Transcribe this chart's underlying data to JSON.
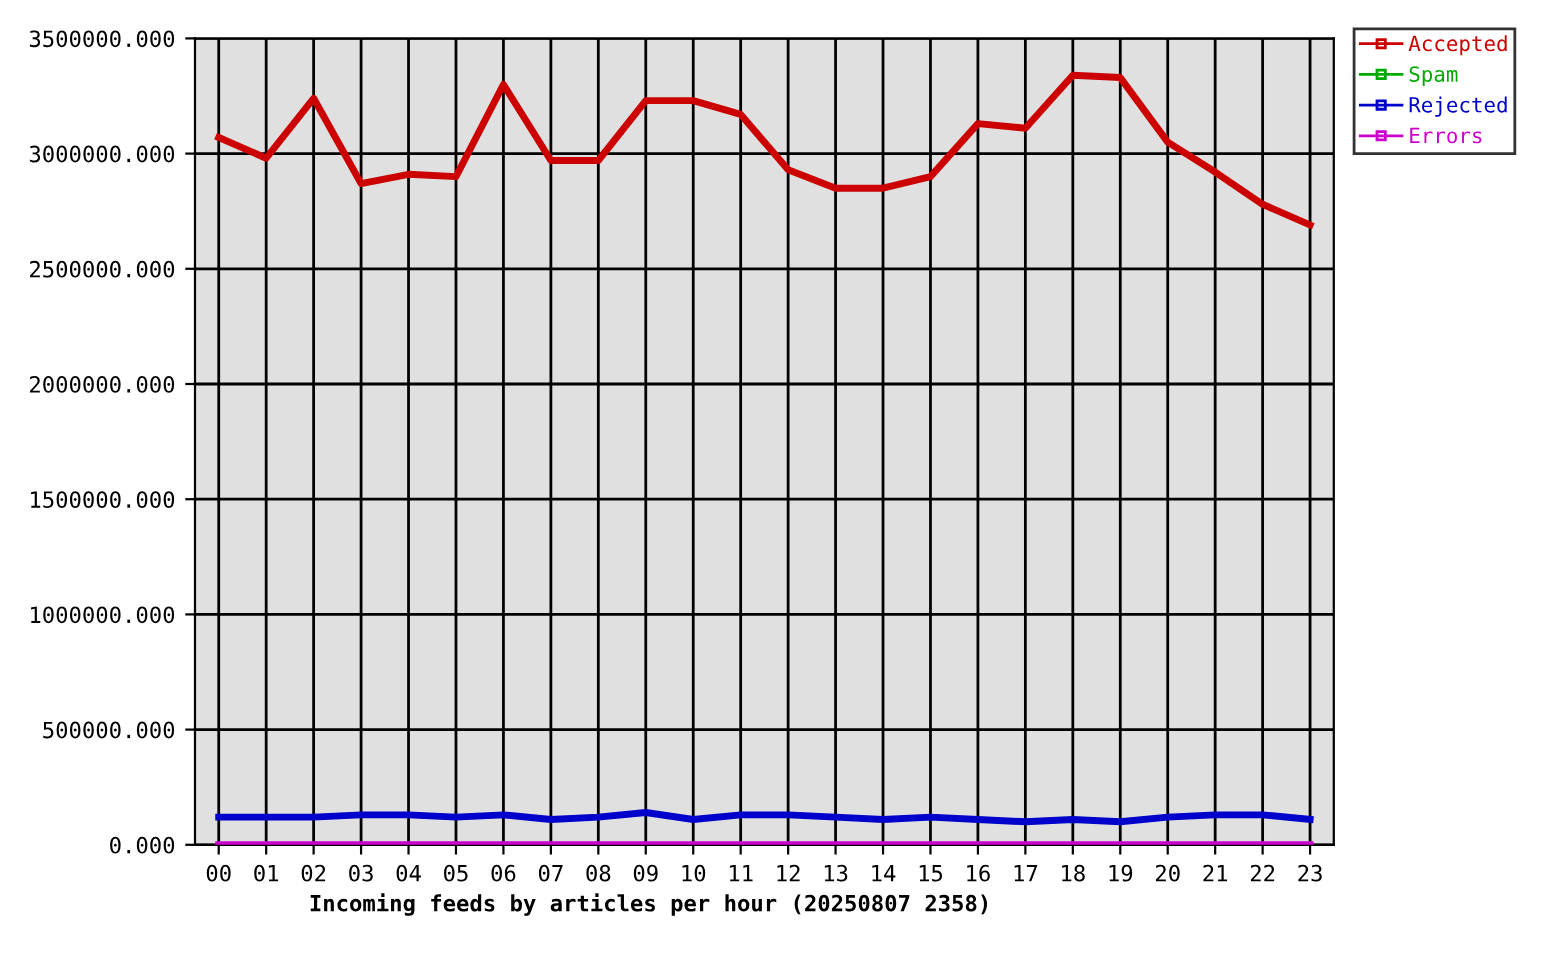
{
  "chart_data": {
    "type": "line",
    "xlabel": "Incoming feeds by articles per hour (20250807 2358)",
    "categories": [
      "00",
      "01",
      "02",
      "03",
      "04",
      "05",
      "06",
      "07",
      "08",
      "09",
      "10",
      "11",
      "12",
      "13",
      "14",
      "15",
      "16",
      "17",
      "18",
      "19",
      "20",
      "21",
      "22",
      "23"
    ],
    "series": [
      {
        "name": "Accepted",
        "color": "#cc0000",
        "values": [
          3070000,
          2980000,
          3240000,
          2870000,
          2910000,
          2900000,
          3300000,
          2970000,
          2970000,
          3230000,
          3230000,
          3170000,
          2930000,
          2850000,
          2850000,
          2900000,
          3130000,
          3110000,
          3340000,
          3330000,
          3050000,
          2920000,
          2780000,
          2690000
        ]
      },
      {
        "name": "Spam",
        "color": "#00aa00",
        "values": [
          null,
          null,
          null,
          null,
          null,
          null,
          null,
          null,
          null,
          null,
          null,
          null,
          null,
          null,
          null,
          null,
          null,
          null,
          null,
          null,
          null,
          null,
          null,
          null
        ]
      },
      {
        "name": "Rejected",
        "color": "#0000cc",
        "values": [
          120000,
          120000,
          120000,
          130000,
          130000,
          120000,
          130000,
          110000,
          120000,
          140000,
          110000,
          130000,
          130000,
          120000,
          110000,
          120000,
          110000,
          100000,
          110000,
          100000,
          120000,
          130000,
          130000,
          110000
        ]
      },
      {
        "name": "Errors",
        "color": "#cc00cc",
        "values": [
          0,
          0,
          0,
          0,
          0,
          0,
          0,
          0,
          0,
          0,
          0,
          0,
          0,
          0,
          0,
          0,
          0,
          0,
          0,
          0,
          0,
          0,
          0,
          0
        ]
      }
    ],
    "ylim": [
      0,
      3500000
    ],
    "yticks": [
      {
        "value": 0,
        "label": "0.000"
      },
      {
        "value": 500000,
        "label": "500000.000"
      },
      {
        "value": 1000000,
        "label": "1000000.000"
      },
      {
        "value": 1500000,
        "label": "1500000.000"
      },
      {
        "value": 2000000,
        "label": "2000000.000"
      },
      {
        "value": 2500000,
        "label": "2500000.000"
      },
      {
        "value": 3000000,
        "label": "3000000.000"
      },
      {
        "value": 3500000,
        "label": "3500000.000"
      }
    ],
    "grid": true,
    "legend": "top right",
    "marker": "none",
    "line_style": "solid"
  }
}
